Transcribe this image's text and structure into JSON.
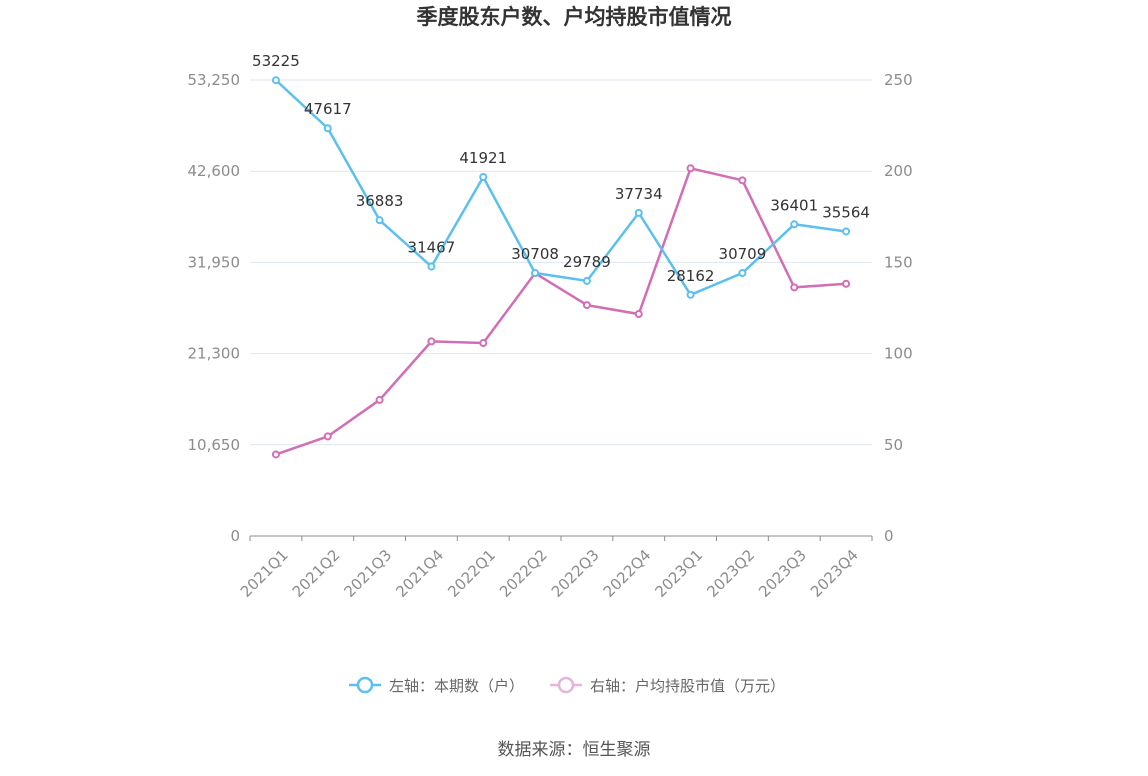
{
  "chart_data": {
    "type": "line",
    "title": "季度股东户数、户均持股市值情况",
    "categories": [
      "2021Q1",
      "2021Q2",
      "2021Q3",
      "2021Q4",
      "2022Q1",
      "2022Q2",
      "2022Q3",
      "2022Q4",
      "2023Q1",
      "2023Q2",
      "2023Q3",
      "2023Q4"
    ],
    "left_axis": {
      "ticks": [
        "0",
        "10,650",
        "21,300",
        "31,950",
        "42,600",
        "53,250"
      ],
      "ylim": [
        0,
        53250
      ]
    },
    "right_axis": {
      "ticks": [
        "0",
        "50",
        "100",
        "150",
        "200",
        "250"
      ],
      "ylim": [
        0,
        250
      ]
    },
    "grid": true,
    "legend_position": "bottom",
    "series": [
      {
        "name": "左轴：本期数（户）",
        "axis": "left",
        "color": "#5bc0f0",
        "values": [
          53225,
          47617,
          36883,
          31467,
          41921,
          30708,
          29789,
          37734,
          28162,
          30709,
          36401,
          35564
        ],
        "labels": [
          "53225",
          "47617",
          "36883",
          "31467",
          "41921",
          "30708",
          "29789",
          "37734",
          "28162",
          "30709",
          "36401",
          "35564"
        ]
      },
      {
        "name": "右轴：户均持股市值（万元）",
        "axis": "right",
        "color": "#d36db5",
        "values": [
          44.7,
          54.6,
          74.6,
          106.7,
          105.8,
          144.1,
          126.6,
          121.7,
          201.6,
          195.0,
          136.3,
          138.3
        ]
      }
    ]
  },
  "source": "数据来源：恒生聚源"
}
